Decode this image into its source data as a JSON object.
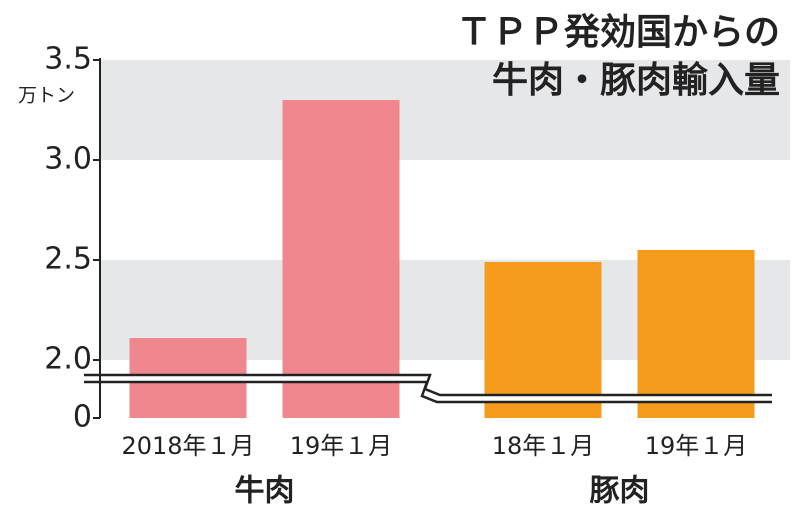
{
  "chart_data": {
    "type": "bar",
    "title_lines": [
      "ＴＰＰ発効国からの",
      "牛肉・豚肉輸入量"
    ],
    "y_unit": "万トン",
    "ylim": [
      0,
      3.5
    ],
    "yticks": [
      0,
      {
        "value": 2,
        "label": "2.0"
      },
      2.5,
      {
        "value": 3,
        "label": "3.0"
      },
      3.5
    ],
    "grid": "bands",
    "series": [
      {
        "name": "牛肉",
        "color": "#f0878f",
        "categories": [
          "2018年１月",
          "19年１月"
        ],
        "values": [
          2.11,
          3.3
        ]
      },
      {
        "name": "豚肉",
        "color": "#f59c1f",
        "categories": [
          "18年１月",
          "19年１月"
        ],
        "values": [
          2.49,
          2.55
        ]
      }
    ]
  }
}
